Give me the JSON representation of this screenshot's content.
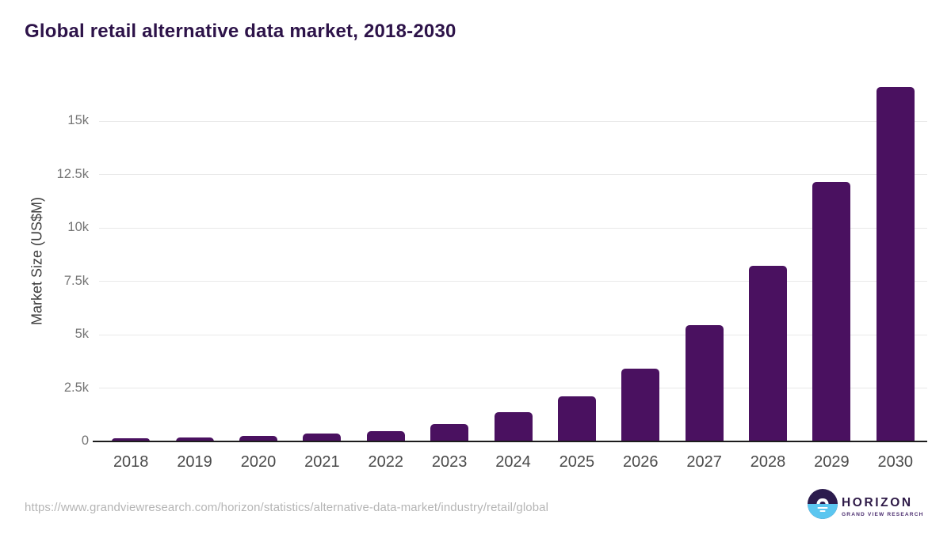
{
  "page": {
    "title": "Global retail alternative data market, 2018-2030"
  },
  "chart_data": {
    "type": "bar",
    "title": "Global retail alternative data market, 2018-2030",
    "categories": [
      "2018",
      "2019",
      "2020",
      "2021",
      "2022",
      "2023",
      "2024",
      "2025",
      "2026",
      "2027",
      "2028",
      "2029",
      "2030"
    ],
    "values": [
      150,
      190,
      265,
      360,
      485,
      815,
      1360,
      2120,
      3420,
      5450,
      8230,
      12160,
      16610
    ],
    "xlabel": "",
    "ylabel": "Market Size (US$M)",
    "ylim": [
      0,
      15000
    ],
    "ytick_values": [
      0,
      2500,
      5000,
      7500,
      10000,
      12500,
      15000
    ],
    "ytick_labels": [
      "0",
      "2.5k",
      "5k",
      "7.5k",
      "10k",
      "12.5k",
      "15k"
    ],
    "grid": true,
    "legend_position": "none",
    "bar_color": "#4a1160"
  },
  "footer": {
    "source_url": "https://www.grandviewresearch.com/horizon/statistics/alternative-data-market/industry/retail/global",
    "logo": {
      "brand": "HORIZON",
      "subtitle": "GRAND VIEW RESEARCH"
    }
  },
  "colors": {
    "title_text": "#2d1349",
    "bar": "#4a1160",
    "gridline": "#e8e8e8",
    "axis_line": "#1c1c1c",
    "y_tick_text": "#757575",
    "x_tick_text": "#4a4a4a",
    "y_axis_title_text": "#3d3d3d",
    "source_url_text": "#b5b5b5",
    "logo_dark": "#2b1b4d",
    "logo_blue": "#5bc6f0"
  }
}
